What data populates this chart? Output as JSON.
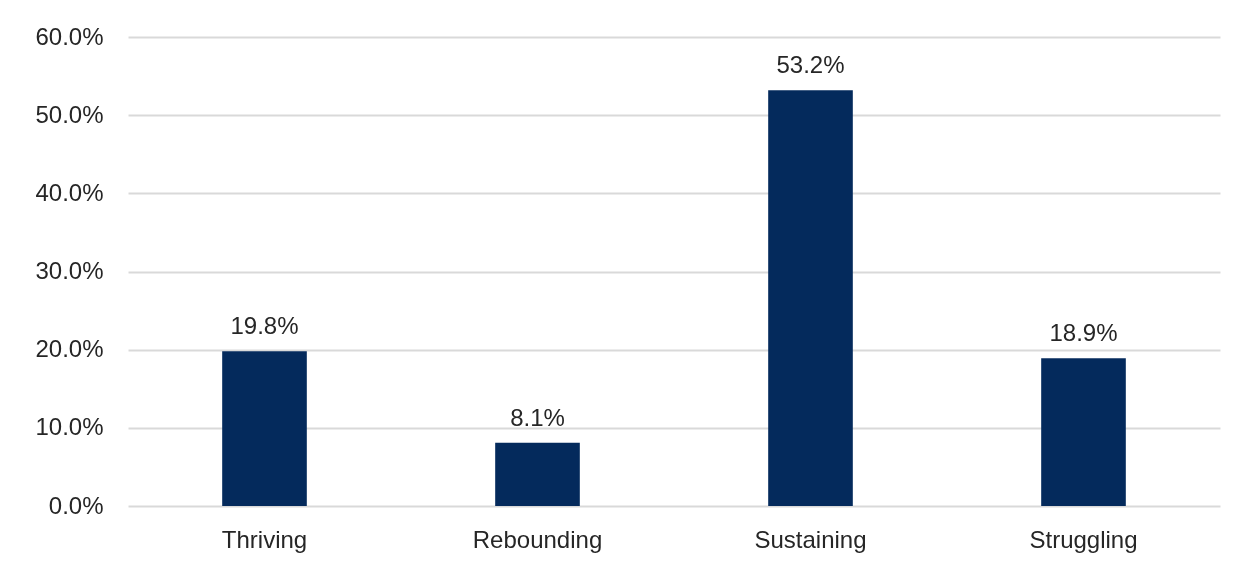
{
  "chart_data": {
    "type": "bar",
    "categories": [
      "Thriving",
      "Rebounding",
      "Sustaining",
      "Struggling"
    ],
    "values": [
      19.8,
      8.1,
      53.2,
      18.9
    ],
    "color": "#042a5c",
    "value_labels": [
      "19.8%",
      "8.1%",
      "53.2%",
      "18.9%"
    ],
    "ylim": [
      0,
      60
    ],
    "yticks": [
      {
        "value": 0,
        "label": "0.0%"
      },
      {
        "value": 10,
        "label": "10.0%"
      },
      {
        "value": 20,
        "label": "20.0%"
      },
      {
        "value": 30,
        "label": "30.0%"
      },
      {
        "value": 40,
        "label": "40.0%"
      },
      {
        "value": 50,
        "label": "50.0%"
      },
      {
        "value": 60,
        "label": "60.0%"
      }
    ],
    "grid": true
  }
}
